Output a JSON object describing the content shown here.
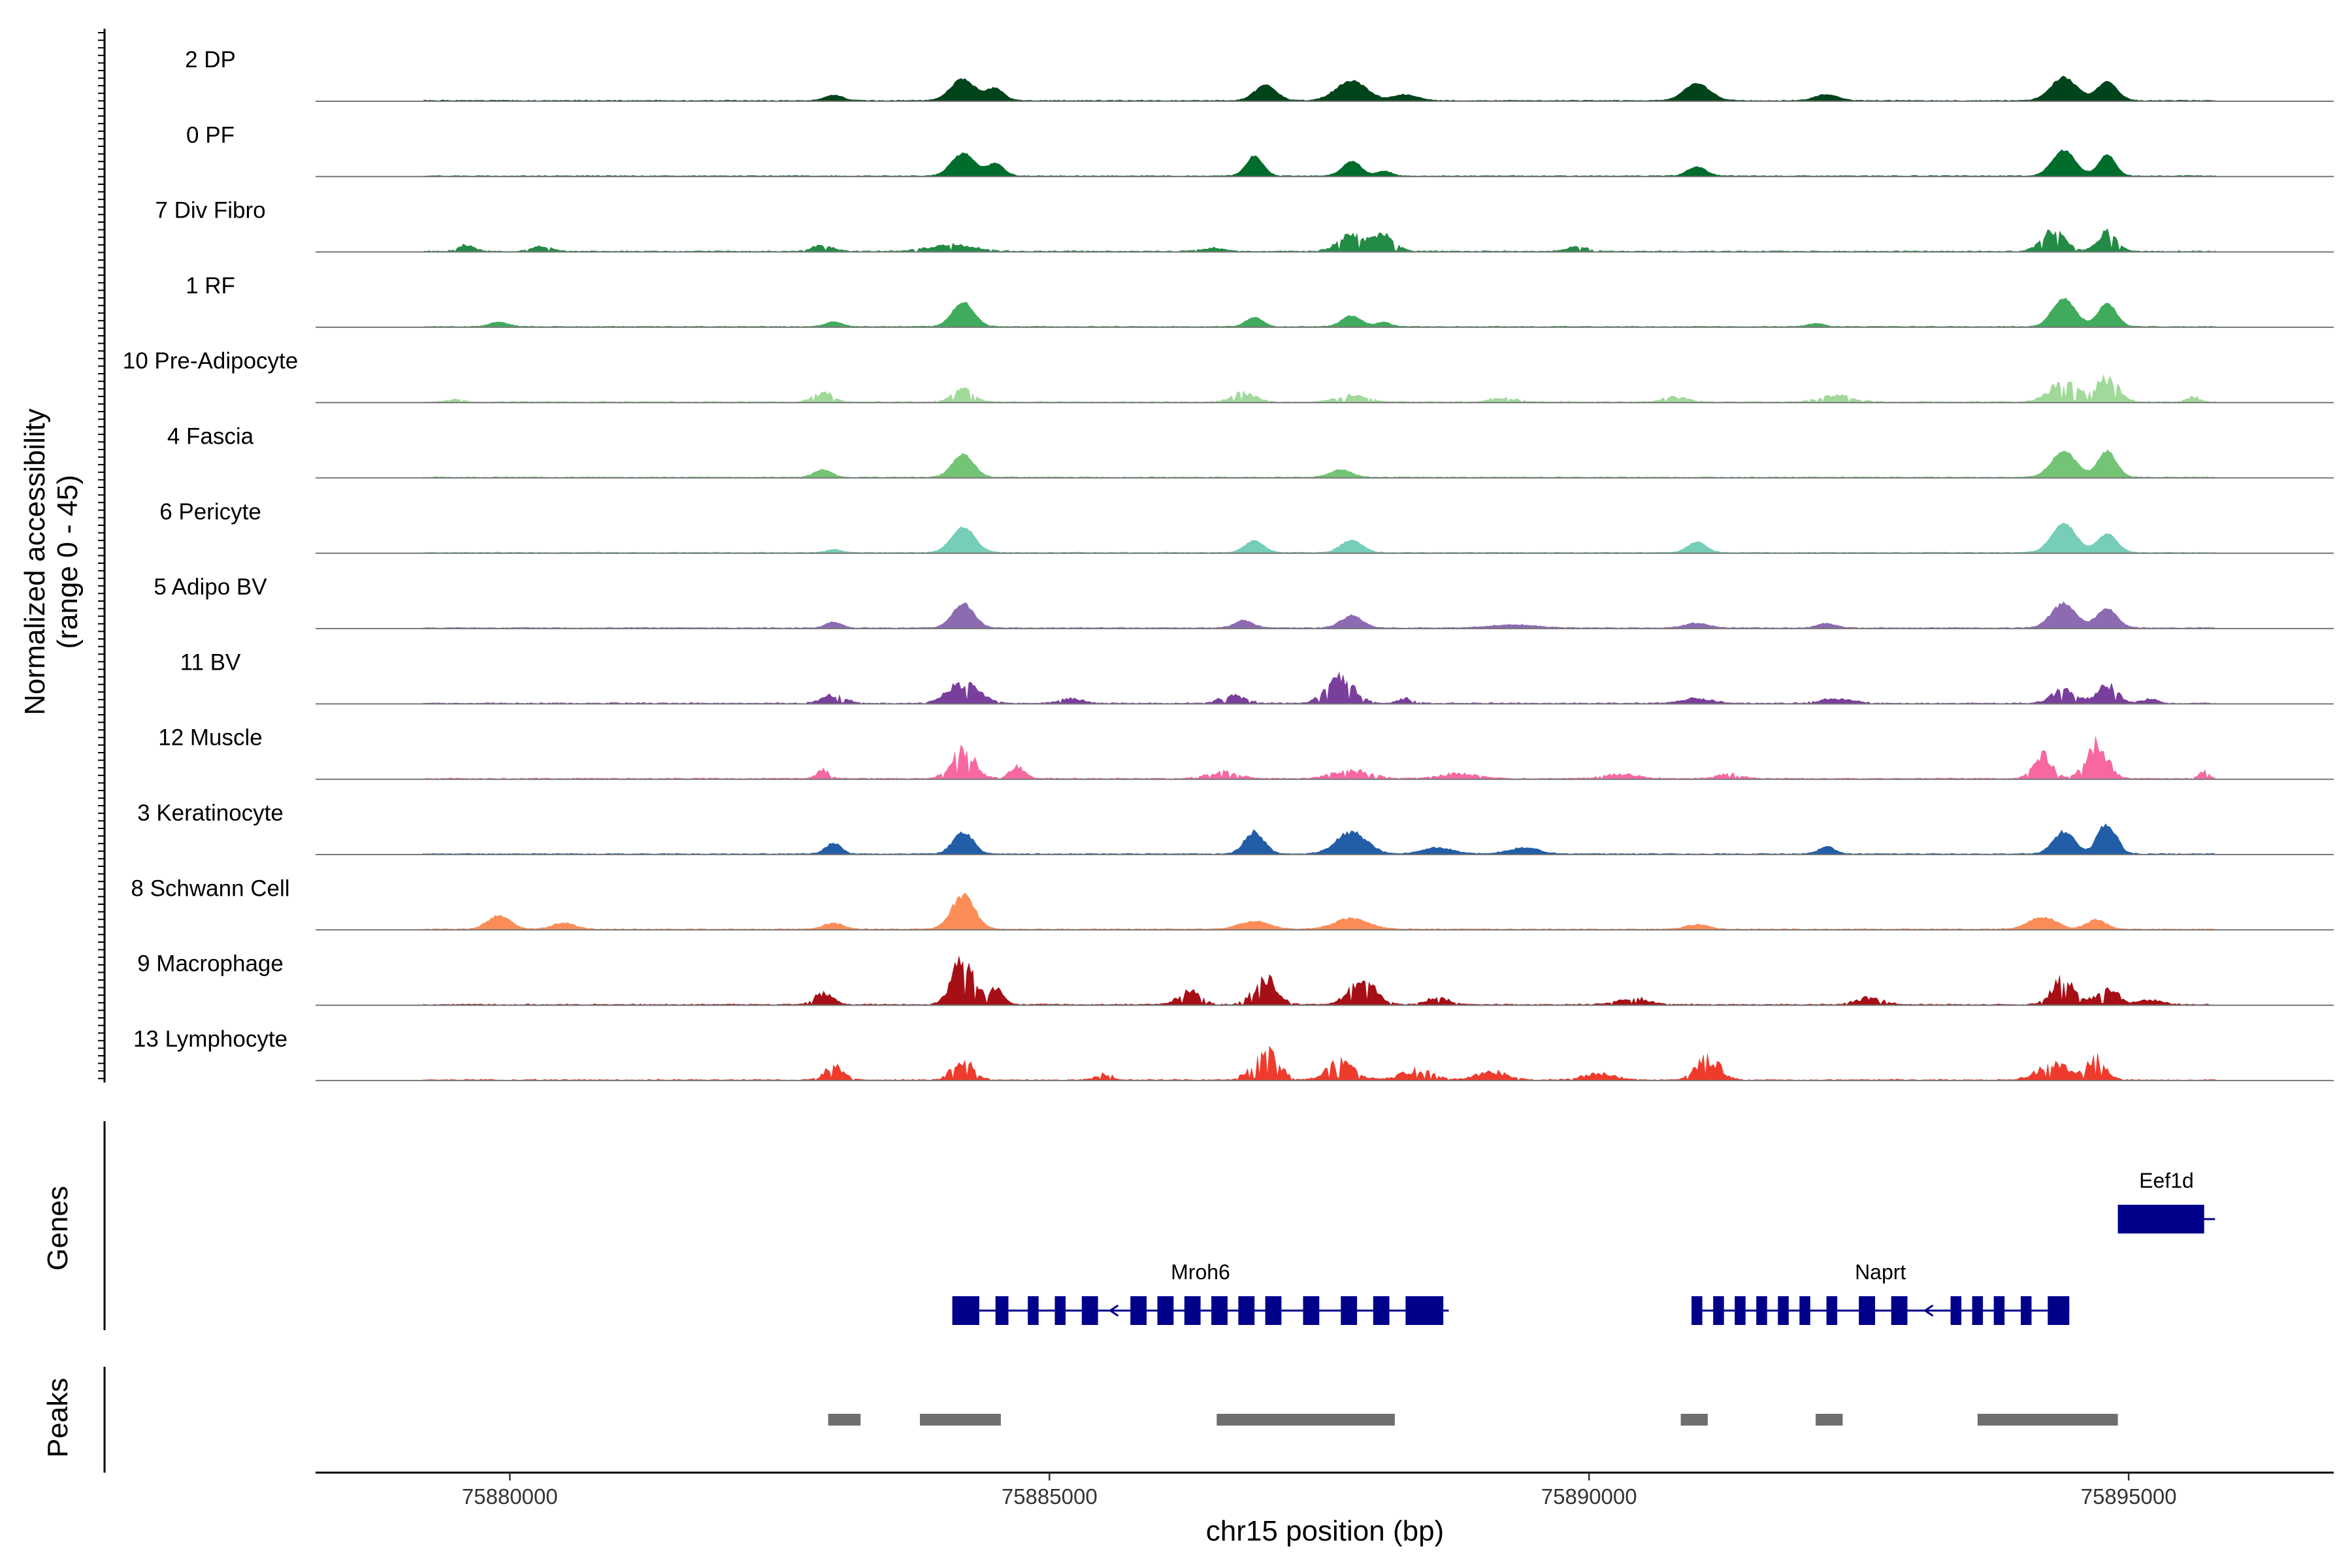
{
  "chart_data": {
    "type": "area",
    "title": "",
    "ylabel_line1": "Normalized accessibility",
    "ylabel_line2": "(range 0 - 45)",
    "ylim": [
      0,
      45
    ],
    "xlabel": "chr15 position (bp)",
    "xlim": [
      75878200,
      75896900
    ],
    "x_ticks": [
      75880000,
      75885000,
      75890000,
      75895000
    ],
    "x_tick_labels": [
      "75880000",
      "75885000",
      "75890000",
      "75895000"
    ],
    "track_range": [
      75879200,
      75895800
    ],
    "series": [
      {
        "name": "2 DP",
        "color": "#00441b",
        "noise": 0.06,
        "peaks": [
          [
            75883000,
            3.5,
            120
          ],
          [
            75884200,
            14,
            160
          ],
          [
            75884500,
            8,
            110
          ],
          [
            75887000,
            10,
            140
          ],
          [
            75887800,
            13,
            200
          ],
          [
            75888300,
            4,
            150
          ],
          [
            75891000,
            11,
            170
          ],
          [
            75892200,
            4,
            150
          ],
          [
            75894400,
            15,
            170
          ],
          [
            75894800,
            12,
            130
          ]
        ]
      },
      {
        "name": "0 PF",
        "color": "#006d2c",
        "noise": 0.05,
        "peaks": [
          [
            75884200,
            15,
            150
          ],
          [
            75884500,
            8,
            110
          ],
          [
            75886900,
            13,
            110
          ],
          [
            75887800,
            10,
            120
          ],
          [
            75888100,
            3,
            100
          ],
          [
            75891000,
            6,
            120
          ],
          [
            75894400,
            17,
            150
          ],
          [
            75894800,
            14,
            110
          ]
        ]
      },
      {
        "name": "7 Div Fibro",
        "color": "#238b45",
        "noise": 0.22,
        "peaks": [
          [
            75879600,
            4,
            100
          ],
          [
            75880300,
            3,
            130
          ],
          [
            75882900,
            4,
            130
          ],
          [
            75884100,
            4,
            300
          ],
          [
            75886500,
            2,
            160
          ],
          [
            75887800,
            10,
            170
          ],
          [
            75888100,
            11,
            130
          ],
          [
            75889900,
            3,
            130
          ],
          [
            75894300,
            13,
            150
          ],
          [
            75894800,
            12,
            120
          ]
        ]
      },
      {
        "name": "1 RF",
        "color": "#41ab5d",
        "noise": 0.05,
        "peaks": [
          [
            75879900,
            3,
            120
          ],
          [
            75883000,
            3,
            110
          ],
          [
            75884200,
            16,
            140
          ],
          [
            75886900,
            6,
            110
          ],
          [
            75887800,
            7,
            130
          ],
          [
            75888100,
            3,
            90
          ],
          [
            75892100,
            2,
            110
          ],
          [
            75894400,
            18,
            150
          ],
          [
            75894800,
            15,
            120
          ]
        ]
      },
      {
        "name": "10 Pre-Adipocyte",
        "color": "#a1d99b",
        "noise": 0.3,
        "peaks": [
          [
            75879500,
            2,
            80
          ],
          [
            75882900,
            6,
            120
          ],
          [
            75884200,
            8,
            130
          ],
          [
            75886800,
            6,
            140
          ],
          [
            75887800,
            4,
            200
          ],
          [
            75889200,
            3,
            150
          ],
          [
            75890800,
            3,
            150
          ],
          [
            75892300,
            4,
            200
          ],
          [
            75894400,
            13,
            180
          ],
          [
            75894800,
            15,
            140
          ],
          [
            75895600,
            3,
            80
          ]
        ]
      },
      {
        "name": "4 Fascia",
        "color": "#74c476",
        "noise": 0.06,
        "peaks": [
          [
            75882900,
            5,
            110
          ],
          [
            75884200,
            15,
            140
          ],
          [
            75887700,
            5,
            140
          ],
          [
            75894400,
            17,
            160
          ],
          [
            75894800,
            17,
            120
          ]
        ]
      },
      {
        "name": "6 Pericyte",
        "color": "#76cdb8",
        "noise": 0.05,
        "peaks": [
          [
            75883000,
            2,
            100
          ],
          [
            75884200,
            17,
            150
          ],
          [
            75886900,
            8,
            120
          ],
          [
            75887800,
            8,
            140
          ],
          [
            75891000,
            7,
            120
          ],
          [
            75894400,
            19,
            160
          ],
          [
            75894800,
            12,
            130
          ]
        ]
      },
      {
        "name": "5 Adipo BV",
        "color": "#8c6bb1",
        "noise": 0.08,
        "peaks": [
          [
            75883000,
            4,
            100
          ],
          [
            75884200,
            16,
            140
          ],
          [
            75886800,
            5,
            120
          ],
          [
            75887800,
            8,
            140
          ],
          [
            75889300,
            2,
            300
          ],
          [
            75891000,
            3,
            160
          ],
          [
            75892200,
            3,
            120
          ],
          [
            75894400,
            16,
            160
          ],
          [
            75894800,
            13,
            130
          ]
        ]
      },
      {
        "name": "11 BV",
        "color": "#7a3e9d",
        "noise": 0.28,
        "peaks": [
          [
            75883000,
            5,
            150
          ],
          [
            75884200,
            13,
            200
          ],
          [
            75885200,
            3,
            150
          ],
          [
            75886700,
            5,
            160
          ],
          [
            75887700,
            16,
            180
          ],
          [
            75888300,
            3,
            100
          ],
          [
            75891000,
            3,
            200
          ],
          [
            75892300,
            3,
            200
          ],
          [
            75894400,
            8,
            160
          ],
          [
            75894800,
            12,
            130
          ],
          [
            75895200,
            3,
            100
          ]
        ]
      },
      {
        "name": "12 Muscle",
        "color": "#f768a1",
        "noise": 0.3,
        "peaks": [
          [
            75882900,
            5,
            80
          ],
          [
            75884200,
            18,
            150
          ],
          [
            75884700,
            7,
            100
          ],
          [
            75886600,
            4,
            200
          ],
          [
            75887800,
            5,
            250
          ],
          [
            75888800,
            3,
            250
          ],
          [
            75890300,
            3,
            200
          ],
          [
            75891300,
            3,
            150
          ],
          [
            75894200,
            15,
            120
          ],
          [
            75894700,
            22,
            140
          ],
          [
            75895700,
            5,
            60
          ]
        ]
      },
      {
        "name": "3 Keratinocyte",
        "color": "#225ea8",
        "noise": 0.12,
        "peaks": [
          [
            75883000,
            7,
            100
          ],
          [
            75884200,
            14,
            130
          ],
          [
            75886900,
            14,
            130
          ],
          [
            75887800,
            14,
            200
          ],
          [
            75888600,
            4,
            200
          ],
          [
            75889400,
            4,
            200
          ],
          [
            75892200,
            5,
            100
          ],
          [
            75894400,
            14,
            140
          ],
          [
            75894800,
            20,
            120
          ]
        ]
      },
      {
        "name": "8 Schwann Cell",
        "color": "#fc8d59",
        "noise": 0.1,
        "peaks": [
          [
            75879900,
            9,
            150
          ],
          [
            75880500,
            4,
            150
          ],
          [
            75883000,
            4,
            130
          ],
          [
            75884200,
            22,
            150
          ],
          [
            75886900,
            5,
            200
          ],
          [
            75887800,
            7,
            220
          ],
          [
            75891000,
            3,
            150
          ],
          [
            75894200,
            8,
            180
          ],
          [
            75894700,
            6,
            130
          ]
        ]
      },
      {
        "name": "9 Macrophage",
        "color": "#a50f15",
        "noise": 0.3,
        "peaks": [
          [
            75882900,
            7,
            120
          ],
          [
            75884200,
            28,
            140
          ],
          [
            75884500,
            10,
            100
          ],
          [
            75886300,
            8,
            140
          ],
          [
            75887000,
            16,
            150
          ],
          [
            75887900,
            14,
            180
          ],
          [
            75888600,
            4,
            150
          ],
          [
            75890400,
            4,
            200
          ],
          [
            75892600,
            4,
            180
          ],
          [
            75894400,
            16,
            150
          ],
          [
            75894800,
            11,
            130
          ],
          [
            75895200,
            3,
            150
          ]
        ]
      },
      {
        "name": "13 Lymphocyte",
        "color": "#ef3b2c",
        "noise": 0.35,
        "peaks": [
          [
            75883000,
            8,
            120
          ],
          [
            75884200,
            13,
            130
          ],
          [
            75885500,
            4,
            100
          ],
          [
            75887000,
            19,
            160
          ],
          [
            75887700,
            11,
            180
          ],
          [
            75888400,
            6,
            200
          ],
          [
            75889100,
            5,
            200
          ],
          [
            75890100,
            4,
            200
          ],
          [
            75891100,
            14,
            150
          ],
          [
            75894300,
            10,
            200
          ],
          [
            75894700,
            15,
            120
          ]
        ]
      }
    ],
    "genes": [
      {
        "name": "Eef1d",
        "strand": "-",
        "start": 75894900,
        "end": 75895800,
        "exons": [
          [
            75894900,
            75895700
          ]
        ],
        "row": 0
      },
      {
        "name": "Mroh6",
        "strand": "-",
        "start": 75884100,
        "end": 75888700,
        "exons": [
          [
            75884100,
            75884350
          ],
          [
            75884500,
            75884620
          ],
          [
            75884800,
            75884900
          ],
          [
            75885050,
            75885150
          ],
          [
            75885300,
            75885450
          ],
          [
            75885750,
            75885900
          ],
          [
            75886000,
            75886150
          ],
          [
            75886250,
            75886400
          ],
          [
            75886500,
            75886650
          ],
          [
            75886750,
            75886900
          ],
          [
            75887000,
            75887150
          ],
          [
            75887350,
            75887500
          ],
          [
            75887700,
            75887850
          ],
          [
            75888000,
            75888150
          ],
          [
            75888300,
            75888650
          ]
        ]
      },
      {
        "name": "Naprt",
        "strand": "-",
        "start": 75890950,
        "end": 75894450,
        "exons": [
          [
            75890950,
            75891050
          ],
          [
            75891150,
            75891250
          ],
          [
            75891350,
            75891450
          ],
          [
            75891550,
            75891650
          ],
          [
            75891750,
            75891850
          ],
          [
            75891950,
            75892050
          ],
          [
            75892200,
            75892300
          ],
          [
            75892500,
            75892650
          ],
          [
            75892800,
            75892950
          ],
          [
            75893350,
            75893450
          ],
          [
            75893550,
            75893650
          ],
          [
            75893750,
            75893850
          ],
          [
            75894000,
            75894100
          ],
          [
            75894250,
            75894450
          ]
        ],
        "row": 1
      }
    ],
    "genes_track_label": "Genes",
    "peaks_track_label": "Peaks",
    "peaks": [
      [
        75882950,
        75883250
      ],
      [
        75883800,
        75884550
      ],
      [
        75886550,
        75888200
      ],
      [
        75890850,
        75891100
      ],
      [
        75892100,
        75892350
      ],
      [
        75893600,
        75894900
      ]
    ]
  }
}
